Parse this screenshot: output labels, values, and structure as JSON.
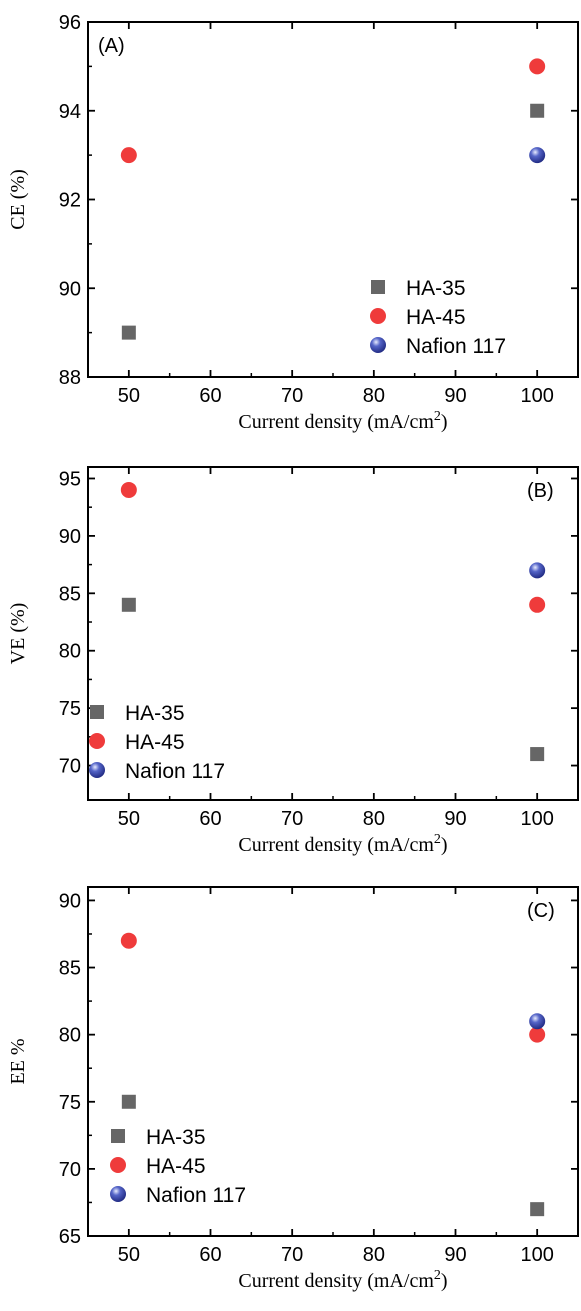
{
  "chart_data": [
    {
      "type": "scatter",
      "panel_label": "(A)",
      "xlabel": "Current density (mA/cm",
      "xlabel_sup": "2",
      "xlabel_end": ")",
      "ylabel": "CE (%)",
      "xlim": [
        45,
        105
      ],
      "ylim": [
        88,
        96
      ],
      "xticks": [
        50,
        60,
        70,
        80,
        90,
        100
      ],
      "yticks": [
        88,
        90,
        92,
        94,
        96
      ],
      "legend_position": "bottom-right",
      "series": [
        {
          "name": "HA-35",
          "marker": "square",
          "color": "#666666",
          "points": [
            [
              50,
              89
            ],
            [
              100,
              94
            ]
          ]
        },
        {
          "name": "HA-45",
          "marker": "circle",
          "color": "#ef3b3b",
          "points": [
            [
              50,
              93
            ],
            [
              100,
              95
            ]
          ]
        },
        {
          "name": "Nafion 117",
          "marker": "sphere",
          "color": "#2f3c9c",
          "points": [
            [
              100,
              93
            ]
          ]
        }
      ]
    },
    {
      "type": "scatter",
      "panel_label": "(B)",
      "xlabel": "Current density (mA/cm",
      "xlabel_sup": "2",
      "xlabel_end": ")",
      "ylabel": "VE (%)",
      "xlim": [
        45,
        105
      ],
      "ylim": [
        67,
        96
      ],
      "xticks": [
        50,
        60,
        70,
        80,
        90,
        100
      ],
      "yticks": [
        70,
        75,
        80,
        85,
        90,
        95
      ],
      "legend_position": "bottom-left",
      "series": [
        {
          "name": "HA-35",
          "marker": "square",
          "color": "#666666",
          "points": [
            [
              50,
              84
            ],
            [
              100,
              71
            ]
          ]
        },
        {
          "name": "HA-45",
          "marker": "circle",
          "color": "#ef3b3b",
          "points": [
            [
              50,
              94
            ],
            [
              100,
              84
            ]
          ]
        },
        {
          "name": "Nafion 117",
          "marker": "sphere",
          "color": "#2f3c9c",
          "points": [
            [
              100,
              87
            ]
          ]
        }
      ]
    },
    {
      "type": "scatter",
      "panel_label": "(C)",
      "xlabel": "Current density (mA/cm",
      "xlabel_sup": "2",
      "xlabel_end": ")",
      "ylabel": "EE %",
      "xlim": [
        45,
        105
      ],
      "ylim": [
        65,
        91
      ],
      "xticks": [
        50,
        60,
        70,
        80,
        90,
        100
      ],
      "yticks": [
        65,
        70,
        75,
        80,
        85,
        90
      ],
      "legend_position": "bottom-left",
      "series": [
        {
          "name": "HA-35",
          "marker": "square",
          "color": "#666666",
          "points": [
            [
              50,
              75
            ],
            [
              100,
              67
            ]
          ]
        },
        {
          "name": "HA-45",
          "marker": "circle",
          "color": "#ef3b3b",
          "points": [
            [
              50,
              87
            ],
            [
              100,
              80
            ]
          ]
        },
        {
          "name": "Nafion 117",
          "marker": "sphere",
          "color": "#2f3c9c",
          "points": [
            [
              100,
              81
            ]
          ]
        }
      ]
    }
  ]
}
